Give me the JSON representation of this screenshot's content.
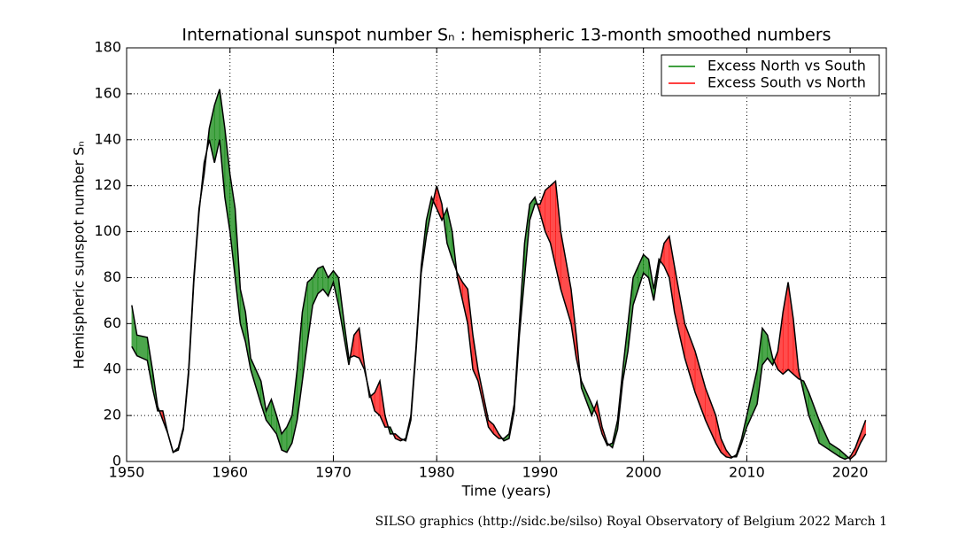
{
  "chart_data": {
    "type": "fill_between",
    "title": "International sunspot number Sₙ : hemispheric 13-month smoothed numbers",
    "x_label": "Time (years)",
    "y_label": "Hemispheric sunspot number Sₙ",
    "footer": "SILSO graphics (http://sidc.be/silso)  Royal Observatory of Belgium  2022 March 1",
    "legend_position": "upper right",
    "legend": [
      {
        "name": "Excess North vs South",
        "color": "#008000"
      },
      {
        "name": "Excess South vs North",
        "color": "#ff0000"
      }
    ],
    "line_color": "#000000",
    "grid": true,
    "xlim": [
      1950,
      2023.5
    ],
    "xticks": [
      1950,
      1960,
      1970,
      1980,
      1990,
      2000,
      2010,
      2020
    ],
    "ylim": [
      0,
      180
    ],
    "yticks": [
      0,
      20,
      40,
      60,
      80,
      100,
      120,
      140,
      160,
      180
    ],
    "x": [
      1950.5,
      1951,
      1952,
      1952.5,
      1953,
      1953.5,
      1954,
      1954.5,
      1955,
      1955.5,
      1956,
      1956.5,
      1957,
      1957.5,
      1958,
      1958.5,
      1959,
      1959.5,
      1960,
      1960.5,
      1961,
      1961.5,
      1962,
      1963,
      1963.5,
      1964,
      1964.5,
      1965,
      1965.5,
      1966,
      1966.5,
      1967,
      1967.5,
      1968,
      1968.5,
      1969,
      1969.5,
      1970,
      1970.5,
      1971,
      1971.5,
      1972,
      1972.5,
      1973,
      1973.5,
      1974,
      1974.5,
      1975,
      1975.5,
      1976,
      1976.5,
      1977,
      1977.5,
      1978,
      1978.5,
      1979,
      1979.5,
      1980,
      1980.5,
      1981,
      1981.5,
      1982,
      1982.5,
      1983,
      1983.5,
      1984,
      1985,
      1985.5,
      1986,
      1986.5,
      1987,
      1987.5,
      1988,
      1988.5,
      1989,
      1989.5,
      1990,
      1990.5,
      1991,
      1991.5,
      1992,
      1993,
      1993.5,
      1994,
      1995,
      1995.5,
      1996,
      1996.5,
      1997,
      1997.5,
      1998,
      1998.5,
      1999,
      1999.5,
      2000,
      2000.5,
      2001,
      2001.5,
      2002,
      2002.5,
      2003,
      2004,
      2005,
      2006,
      2007,
      2007.5,
      2008,
      2008.5,
      2009,
      2009.5,
      2010,
      2011,
      2011.5,
      2012,
      2012.5,
      2013,
      2013.5,
      2014,
      2014.5,
      2015,
      2015.5,
      2016,
      2017,
      2018,
      2019,
      2019.5,
      2020,
      2020.5,
      2021,
      2021.5
    ],
    "series": [
      {
        "values": [
          68,
          55,
          54,
          40,
          24,
          18,
          12,
          4,
          6,
          15,
          40,
          80,
          110,
          125,
          145,
          155,
          162,
          145,
          125,
          110,
          75,
          65,
          45,
          35,
          22,
          27,
          20,
          12,
          15,
          20,
          40,
          65,
          78,
          80,
          84,
          85,
          80,
          83,
          80,
          62,
          45,
          46,
          45,
          40,
          30,
          22,
          20,
          15,
          15,
          10,
          9,
          10,
          20,
          50,
          85,
          105,
          115,
          110,
          105,
          110,
          100,
          80,
          70,
          60,
          40,
          35,
          15,
          12,
          10,
          10,
          12,
          25,
          60,
          95,
          112,
          115,
          108,
          100,
          95,
          85,
          75,
          60,
          45,
          35,
          25,
          20,
          12,
          7,
          8,
          18,
          40,
          60,
          80,
          85,
          90,
          88,
          75,
          88,
          85,
          80,
          65,
          45,
          30,
          18,
          8,
          4,
          2,
          1.5,
          3,
          10,
          20,
          40,
          58,
          55,
          45,
          40,
          38,
          40,
          38,
          36,
          35,
          30,
          18,
          8,
          5,
          3,
          1,
          3,
          8,
          12
        ]
      },
      {
        "values": [
          50,
          46,
          44,
          32,
          22,
          22,
          12,
          4,
          5,
          14,
          38,
          78,
          108,
          130,
          140,
          130,
          140,
          115,
          100,
          80,
          60,
          52,
          40,
          25,
          18,
          15,
          12,
          5,
          4,
          8,
          18,
          35,
          52,
          68,
          73,
          75,
          72,
          78,
          68,
          55,
          42,
          55,
          58,
          42,
          28,
          30,
          35,
          20,
          12,
          12,
          10,
          9,
          18,
          48,
          82,
          98,
          110,
          120,
          112,
          95,
          88,
          82,
          78,
          75,
          55,
          40,
          18,
          16,
          12,
          9,
          10,
          22,
          55,
          80,
          105,
          112,
          112,
          118,
          120,
          122,
          100,
          75,
          55,
          32,
          20,
          26,
          15,
          8,
          6,
          14,
          35,
          48,
          68,
          75,
          82,
          80,
          70,
          85,
          95,
          98,
          85,
          60,
          48,
          32,
          20,
          10,
          5,
          2,
          2,
          8,
          15,
          25,
          42,
          45,
          42,
          48,
          65,
          78,
          62,
          40,
          30,
          20,
          8,
          5,
          2,
          1,
          2,
          6,
          12,
          18
        ]
      }
    ]
  }
}
